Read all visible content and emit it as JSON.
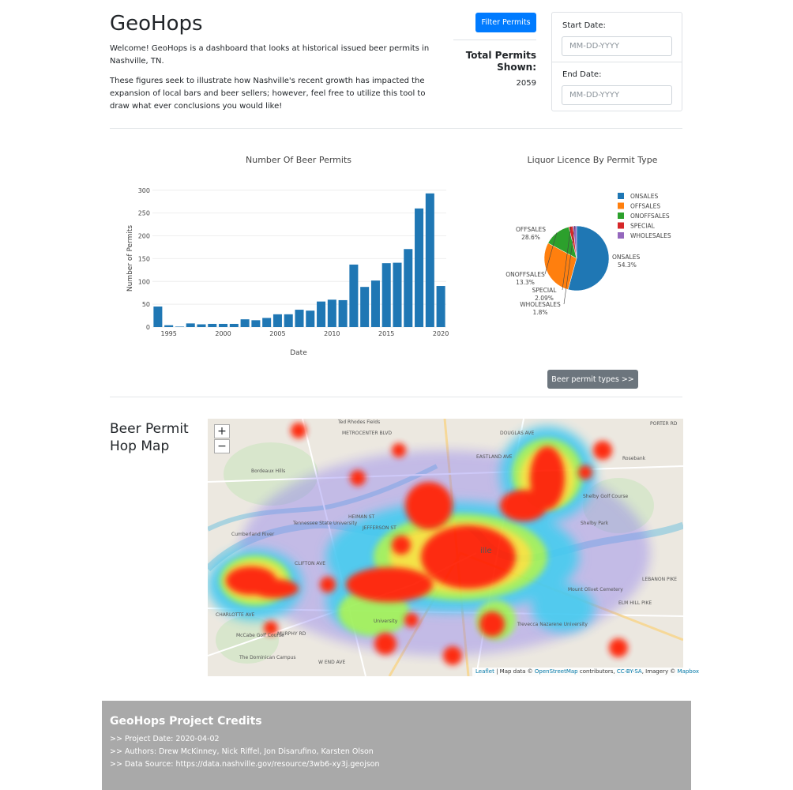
{
  "header": {
    "title": "GeoHops",
    "intro_1": "Welcome! GeoHops is a dashboard that looks at historical issued beer permits in Nashville, TN.",
    "intro_2": "These figures seek to illustrate how Nashville's recent growth has impacted the expansion of local bars and beer sellers; however, feel free to utilize this tool to draw what ever conclusions you would like!"
  },
  "filter": {
    "button_label": "Filter Permits",
    "total_label": "Total Permits Shown:",
    "total_value": "2059",
    "start_label": "Start Date:",
    "start_placeholder": "MM-DD-YYYY",
    "end_label": "End Date:",
    "end_placeholder": "MM-DD-YYYY"
  },
  "chart_data": [
    {
      "type": "bar",
      "title": "Number Of Beer Permits",
      "xlabel": "Date",
      "ylabel": "Number of Permits",
      "x": [
        1994,
        1995,
        1996,
        1997,
        1998,
        1999,
        2000,
        2001,
        2002,
        2003,
        2004,
        2005,
        2006,
        2007,
        2008,
        2009,
        2010,
        2011,
        2012,
        2013,
        2014,
        2015,
        2016,
        2017,
        2018,
        2019,
        2020
      ],
      "values": [
        45,
        4,
        1,
        8,
        6,
        7,
        7,
        7,
        17,
        15,
        20,
        28,
        28,
        38,
        36,
        56,
        60,
        59,
        137,
        88,
        102,
        140,
        141,
        171,
        260,
        293,
        90
      ],
      "xlim": [
        1993.5,
        2020.5
      ],
      "ylim": [
        0,
        310
      ],
      "x_ticks": [
        1995,
        2000,
        2005,
        2010,
        2015,
        2020
      ],
      "y_ticks": [
        0,
        50,
        100,
        150,
        200,
        250,
        300
      ],
      "color": "#1f77b4",
      "grid": true
    },
    {
      "type": "pie",
      "title": "Liquor Licence By Permit Type",
      "labels": [
        "ONSALES",
        "OFFSALES",
        "ONOFFSALES",
        "SPECIAL",
        "WHOLESALES"
      ],
      "values": [
        54.3,
        28.6,
        13.3,
        2.09,
        1.8
      ],
      "text": [
        "54.3%",
        "28.6%",
        "13.3%",
        "2.09%",
        "1.8%"
      ],
      "colors": [
        "#1f77b4",
        "#ff7f0e",
        "#2ca02c",
        "#d62728",
        "#9467bd"
      ],
      "legend": "top-right"
    }
  ],
  "pie_button_label": "Beer permit types >>",
  "map": {
    "title": "Beer Permit Hop Map",
    "zoom_in": "+",
    "zoom_out": "−",
    "attribution_leaflet": "Leaflet",
    "attribution_mid": " | Map data © ",
    "attribution_osm": "OpenStreetMap",
    "attribution_contrib": " contributors, ",
    "attribution_cc": "CC-BY-SA",
    "attribution_imagery": ", Imagery © ",
    "attribution_mapbox": "Mapbox",
    "place_labels": [
      "Ted Rhodes Fields",
      "METROCENTER BLVD",
      "Bordeaux Hills",
      "Tennessee State University",
      "Rosebank",
      "Shelby Golf Course",
      "Shelby Park",
      "Mount Olivet Cemetery",
      "Trevecca Nazarene University",
      "McCabe Golf Course",
      "The Dominican Campus",
      "DOUGLAS AVE",
      "PORTER RD",
      "EASTLAND AVE",
      "HEIMAN ST",
      "JEFFERSON ST",
      "CLIFTON AVE",
      "CHARLOTTE AVE",
      "MURPHY RD",
      "W END AVE",
      "ELM HILL PIKE",
      "LEBANON PIKE",
      "Cumberland River",
      "University",
      "ille"
    ]
  },
  "footer": {
    "title": "GeoHops Project Credits",
    "date": ">> Project Date: 2020-04-02",
    "authors": ">> Authors: Drew McKinney, Nick Riffel, Jon Disarufino, Karsten Olson",
    "source": ">> Data Source: https://data.nashville.gov/resource/3wb6-xy3j.geojson"
  }
}
